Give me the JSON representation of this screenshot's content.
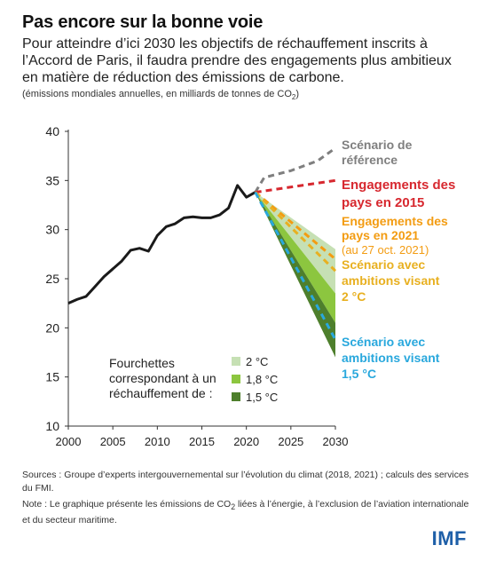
{
  "header": {
    "title": "Pas encore sur la bonne voie",
    "subtitle": "Pour atteindre d’ici 2030 les objectifs de réchauffement inscrits à l’Accord de Paris, il faudra prendre des engagements plus ambitieux en matière de réduction des émissions de carbone.",
    "units_prefix": "(émissions mondiales annuelles, en milliards de tonnes de CO",
    "units_sub": "2",
    "units_suffix": ")"
  },
  "chart_data": {
    "type": "line",
    "xlabel": "",
    "ylabel": "",
    "xlim": [
      2000,
      2030
    ],
    "ylim": [
      10,
      40
    ],
    "xticks": [
      "2000",
      "2005",
      "2010",
      "2015",
      "2020",
      "2025",
      "2030"
    ],
    "yticks": [
      "10",
      "15",
      "20",
      "25",
      "30",
      "35",
      "40"
    ],
    "grid": false,
    "historical": {
      "color": "#1a1a1a",
      "x": [
        2000,
        2001,
        2002,
        2003,
        2004,
        2005,
        2006,
        2007,
        2008,
        2009,
        2010,
        2011,
        2012,
        2013,
        2014,
        2015,
        2016,
        2017,
        2018,
        2019,
        2020,
        2021
      ],
      "y": [
        22.5,
        22.9,
        23.2,
        24.2,
        25.2,
        26.0,
        26.8,
        27.9,
        28.1,
        27.8,
        29.4,
        30.3,
        30.6,
        31.2,
        31.3,
        31.2,
        31.2,
        31.5,
        32.2,
        34.5,
        33.3,
        33.8
      ]
    },
    "scenarios": [
      {
        "label_lines": [
          "Scénario de",
          "référence"
        ],
        "color": "#7f7f7f",
        "x": [
          2021,
          2022,
          2025,
          2028,
          2030
        ],
        "y": [
          33.8,
          35.3,
          36.0,
          37.0,
          38.3
        ]
      },
      {
        "label_lines": [
          "Engagements des",
          "pays en 2015"
        ],
        "color": "#d7282f",
        "x": [
          2021,
          2030
        ],
        "y": [
          33.8,
          35.0
        ]
      },
      {
        "label_lines": [
          "Engagements des",
          "pays en 2021",
          "(au 27 oct. 2021)"
        ],
        "color": "#f39c12",
        "x": [
          2021,
          2030
        ],
        "y": [
          33.8,
          27.0
        ]
      },
      {
        "label_lines": [
          "Scénario avec",
          "ambitions visant",
          "2 °C"
        ],
        "color": "#e8b020",
        "x": [
          2021,
          2030
        ],
        "y": [
          33.8,
          25.8
        ]
      },
      {
        "label_lines": [
          "Scénario avec",
          "ambitions visant",
          "1,5 °C"
        ],
        "color": "#29a8dd",
        "x": [
          2021,
          2030
        ],
        "y": [
          33.8,
          18.8
        ]
      }
    ],
    "ranges": [
      {
        "label": "2 °C",
        "color": "#c6e0b4",
        "x": [
          2021,
          2030
        ],
        "upper": [
          33.8,
          28.0
        ],
        "lower": [
          33.8,
          23.5
        ]
      },
      {
        "label": "1,8 °C",
        "color": "#8cc63f",
        "x": [
          2021,
          2030
        ],
        "upper": [
          33.8,
          23.5
        ],
        "lower": [
          33.8,
          20.5
        ]
      },
      {
        "label": "1,5 °C",
        "color": "#4e7f2c",
        "x": [
          2021,
          2030
        ],
        "upper": [
          33.8,
          20.5
        ],
        "lower": [
          33.8,
          17.0
        ]
      }
    ],
    "legend": {
      "title_lines": [
        "Fourchettes",
        "correspondant à un",
        "réchauffement de :"
      ],
      "position": "bottom-center"
    }
  },
  "footer": {
    "sources": "Sources : Groupe d’experts intergouvernemental sur l’évolution du climat (2018, 2021) ; calculs des services du FMI.",
    "note_prefix": "Note : Le graphique présente les émissions de CO",
    "note_sub": "2",
    "note_suffix": " liées à l’énergie, à l’exclusion de l’aviation internationale et du secteur maritime.",
    "logo": "IMF"
  }
}
